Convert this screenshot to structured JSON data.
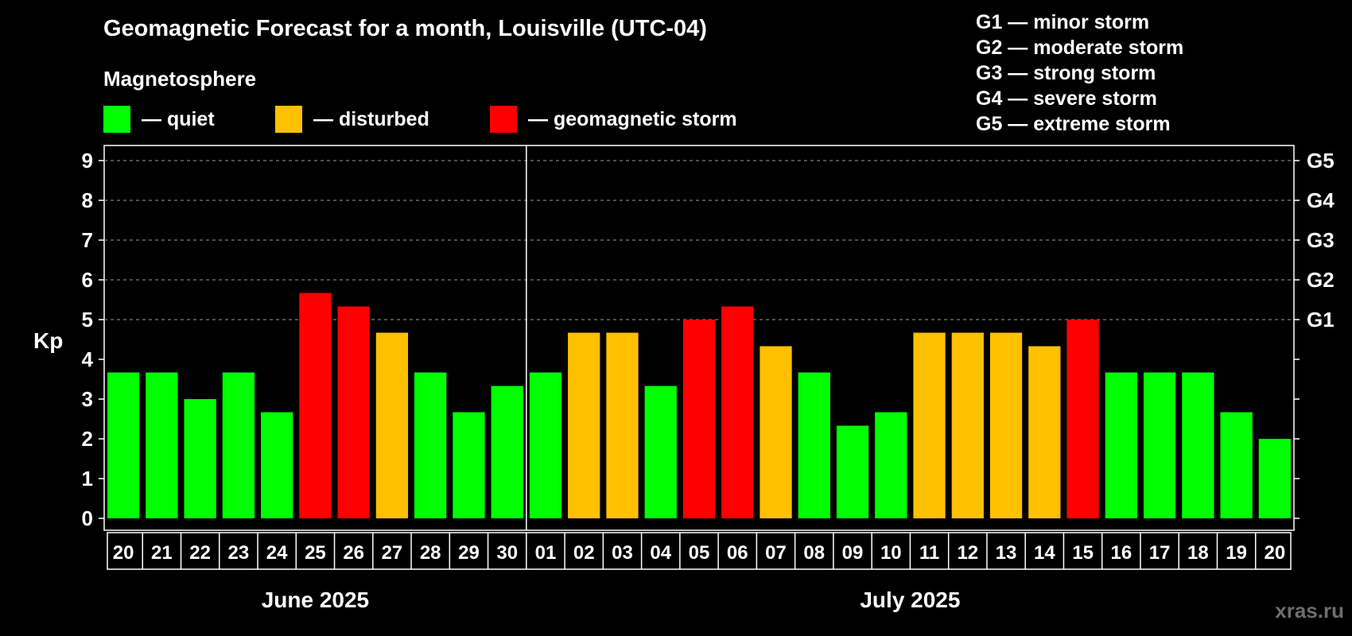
{
  "title": "Geomagnetic Forecast for a month, Louisville (UTC-04)",
  "legend": {
    "heading": "Magnetosphere",
    "items": [
      {
        "label": "— quiet",
        "color": "#00ff00"
      },
      {
        "label": "— disturbed",
        "color": "#ffc000"
      },
      {
        "label": "— geomagnetic storm",
        "color": "#ff0000"
      }
    ]
  },
  "storm_scale": [
    "G1 — minor storm",
    "G2 — moderate storm",
    "G3 — strong storm",
    "G4 — severe storm",
    "G5 — extreme storm"
  ],
  "watermark": "xras.ru",
  "chart_data": {
    "type": "bar",
    "title": "Geomagnetic Forecast for a month, Louisville (UTC-04)",
    "ylabel": "Kp",
    "ylim": [
      0,
      9
    ],
    "yticks": [
      "0",
      "1",
      "2",
      "3",
      "4",
      "5",
      "6",
      "7",
      "8",
      "9"
    ],
    "right_ticks": [
      {
        "value": 5,
        "label": "G1"
      },
      {
        "value": 6,
        "label": "G2"
      },
      {
        "value": 7,
        "label": "G3"
      },
      {
        "value": 8,
        "label": "G4"
      },
      {
        "value": 9,
        "label": "G5"
      }
    ],
    "grid": "dashed horizontal at 5-9",
    "months": [
      {
        "label": "June 2025",
        "count": 11
      },
      {
        "label": "July 2025",
        "count": 20
      }
    ],
    "categories": [
      "20",
      "21",
      "22",
      "23",
      "24",
      "25",
      "26",
      "27",
      "28",
      "29",
      "30",
      "01",
      "02",
      "03",
      "04",
      "05",
      "06",
      "07",
      "08",
      "09",
      "10",
      "11",
      "12",
      "13",
      "14",
      "15",
      "16",
      "17",
      "18",
      "19",
      "20"
    ],
    "values": [
      3.67,
      3.67,
      3.0,
      3.67,
      2.67,
      5.67,
      5.33,
      4.67,
      3.67,
      2.67,
      3.33,
      3.67,
      4.67,
      4.67,
      3.33,
      5.0,
      5.33,
      4.33,
      3.67,
      2.33,
      2.67,
      4.67,
      4.67,
      4.67,
      4.33,
      5.0,
      3.67,
      3.67,
      3.67,
      2.67,
      2.0
    ],
    "status": [
      "quiet",
      "quiet",
      "quiet",
      "quiet",
      "quiet",
      "storm",
      "storm",
      "disturbed",
      "quiet",
      "quiet",
      "quiet",
      "quiet",
      "disturbed",
      "disturbed",
      "quiet",
      "storm",
      "storm",
      "disturbed",
      "quiet",
      "quiet",
      "quiet",
      "disturbed",
      "disturbed",
      "disturbed",
      "disturbed",
      "storm",
      "quiet",
      "quiet",
      "quiet",
      "quiet",
      "quiet"
    ],
    "colors": {
      "quiet": "#00ff00",
      "disturbed": "#ffc000",
      "storm": "#ff0000"
    }
  }
}
